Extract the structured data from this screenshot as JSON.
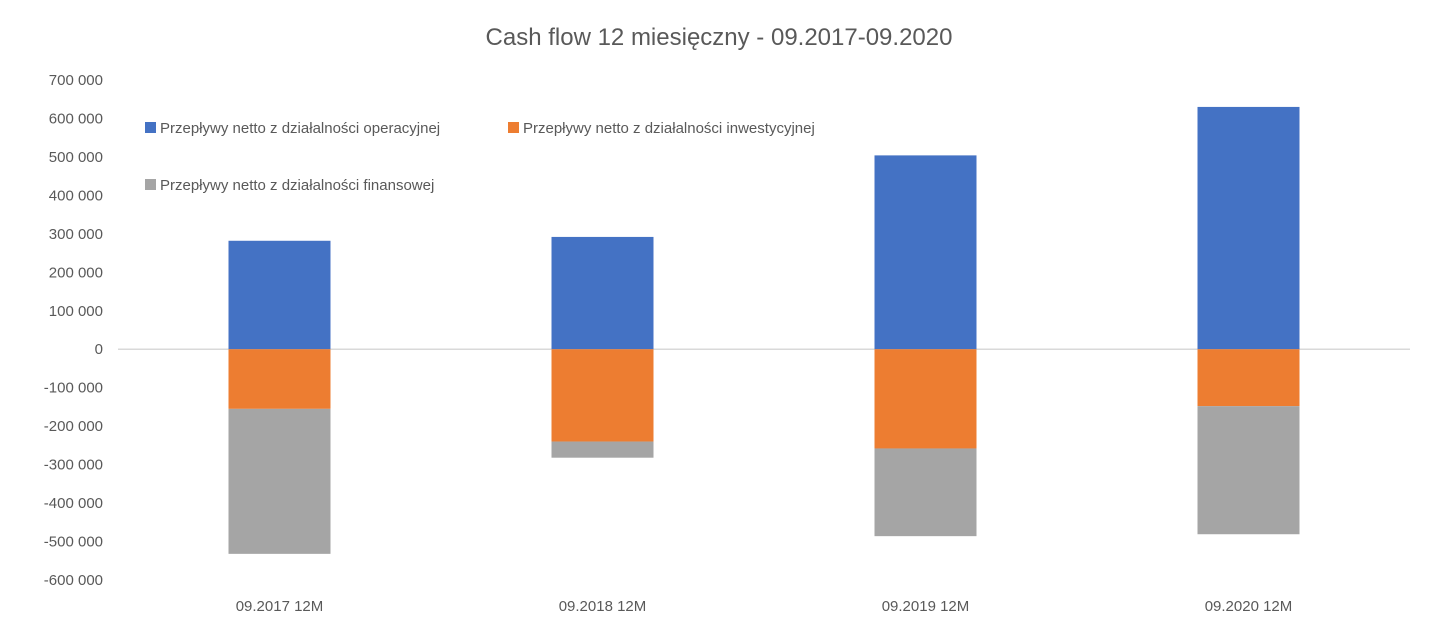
{
  "chart_data": {
    "type": "bar",
    "stacked": true,
    "title": "Cash flow 12 miesięczny - 09.2017-09.2020",
    "xlabel": "",
    "ylabel": "",
    "categories": [
      "09.2017 12M",
      "09.2018 12M",
      "09.2019 12M",
      "09.2020 12M"
    ],
    "ylim": [
      -600000,
      700000
    ],
    "yticks": [
      700000,
      600000,
      500000,
      400000,
      300000,
      200000,
      100000,
      0,
      -100000,
      -200000,
      -300000,
      -400000,
      -500000,
      -600000
    ],
    "ytick_labels": [
      "700 000",
      "600 000",
      "500 000",
      "400 000",
      "300 000",
      "200 000",
      "100 000",
      "0",
      "-100 000",
      "-200 000",
      "-300 000",
      "-400 000",
      "-500 000",
      "-600 000"
    ],
    "grid": false,
    "legend_position": "top-left",
    "series": [
      {
        "name": "Przepływy netto z działalności operacyjnej",
        "color": "#4472C4",
        "values": [
          282000,
          292000,
          504000,
          630000
        ]
      },
      {
        "name": "Przepływy netto z działalności inwestycyjnej",
        "color": "#ED7D31",
        "values": [
          -155000,
          -240000,
          -258000,
          -148000
        ]
      },
      {
        "name": "Przepływy netto z działalności finansowej",
        "color": "#A5A5A5",
        "values": [
          -377000,
          -42000,
          -228000,
          -333000
        ]
      }
    ]
  }
}
